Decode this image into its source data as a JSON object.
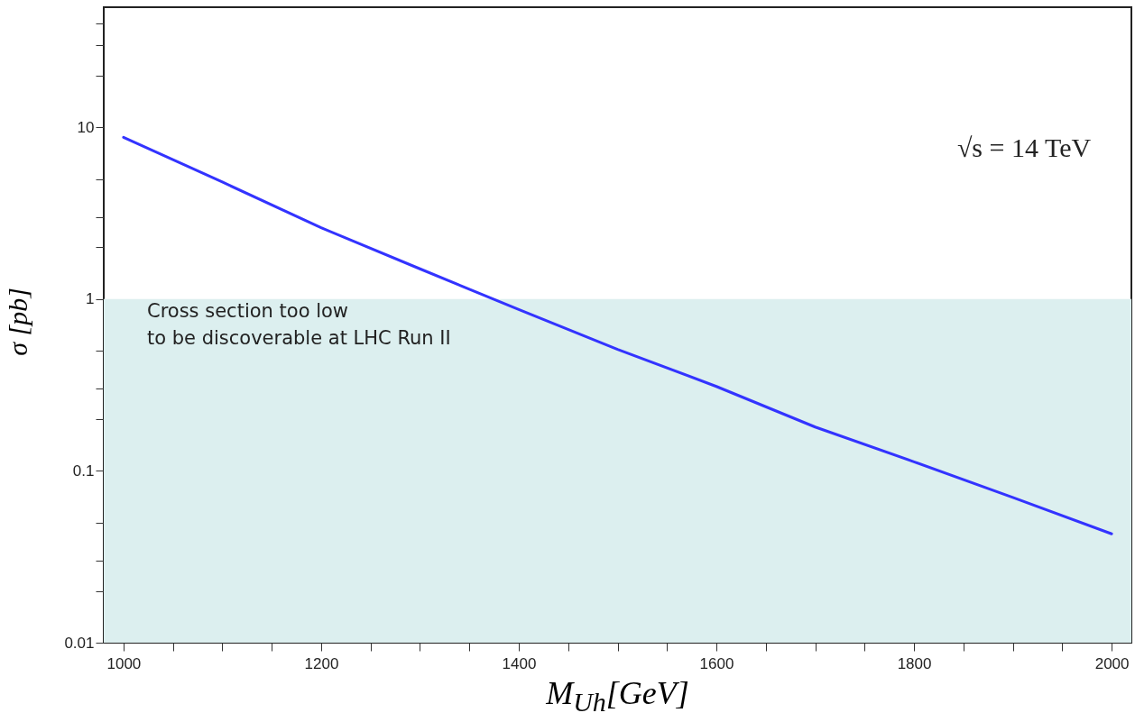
{
  "chart_data": {
    "type": "line",
    "xlabel": "M$_{Uh}$[GeV]",
    "ylabel": "σ [pb]",
    "x": [
      1000,
      1100,
      1200,
      1300,
      1400,
      1500,
      1600,
      1700,
      1800,
      1900,
      2000
    ],
    "series": [
      {
        "color": "#3333ff",
        "values": [
          8.75,
          4.8,
          2.6,
          1.5,
          0.87,
          0.51,
          0.31,
          0.18,
          0.113,
          0.07,
          0.043
        ]
      }
    ],
    "xlim": [
      980,
      2020
    ],
    "xticks": [
      1000,
      {
        "value": 1050,
        "label": null
      },
      {
        "value": 1100,
        "label": null
      },
      {
        "value": 1150,
        "label": null
      },
      1200,
      {
        "value": 1250,
        "label": null
      },
      {
        "value": 1300,
        "label": null
      },
      {
        "value": 1350,
        "label": null
      },
      1400,
      {
        "value": 1450,
        "label": null
      },
      {
        "value": 1500,
        "label": null
      },
      {
        "value": 1550,
        "label": null
      },
      1600,
      {
        "value": 1650,
        "label": null
      },
      {
        "value": 1700,
        "label": null
      },
      {
        "value": 1750,
        "label": null
      },
      1800,
      {
        "value": 1850,
        "label": null
      },
      {
        "value": 1900,
        "label": null
      },
      {
        "value": 1950,
        "label": null
      },
      2000
    ],
    "ylim": [
      0.01,
      50
    ],
    "yticks": [
      0.01,
      {
        "value": 0.02,
        "label": null
      },
      {
        "value": 0.03,
        "label": null
      },
      {
        "value": 0.05,
        "label": null
      },
      0.1,
      {
        "value": 0.2,
        "label": null
      },
      {
        "value": 0.3,
        "label": null
      },
      {
        "value": 0.5,
        "label": null
      },
      1,
      {
        "value": 2,
        "label": null
      },
      {
        "value": 3,
        "label": null
      },
      {
        "value": 5,
        "label": null
      },
      10,
      {
        "value": 20,
        "label": null
      },
      {
        "value": 30,
        "label": null
      },
      {
        "value": 40,
        "label": null
      }
    ],
    "log": true,
    "bands": [
      {
        "axis": "y",
        "from": 0.01,
        "to": 1,
        "color": "#dcefef"
      }
    ],
    "annotations": [
      "√s = 14 TeV",
      "Cross section too low\nto be discoverable at LHC Run II"
    ]
  }
}
